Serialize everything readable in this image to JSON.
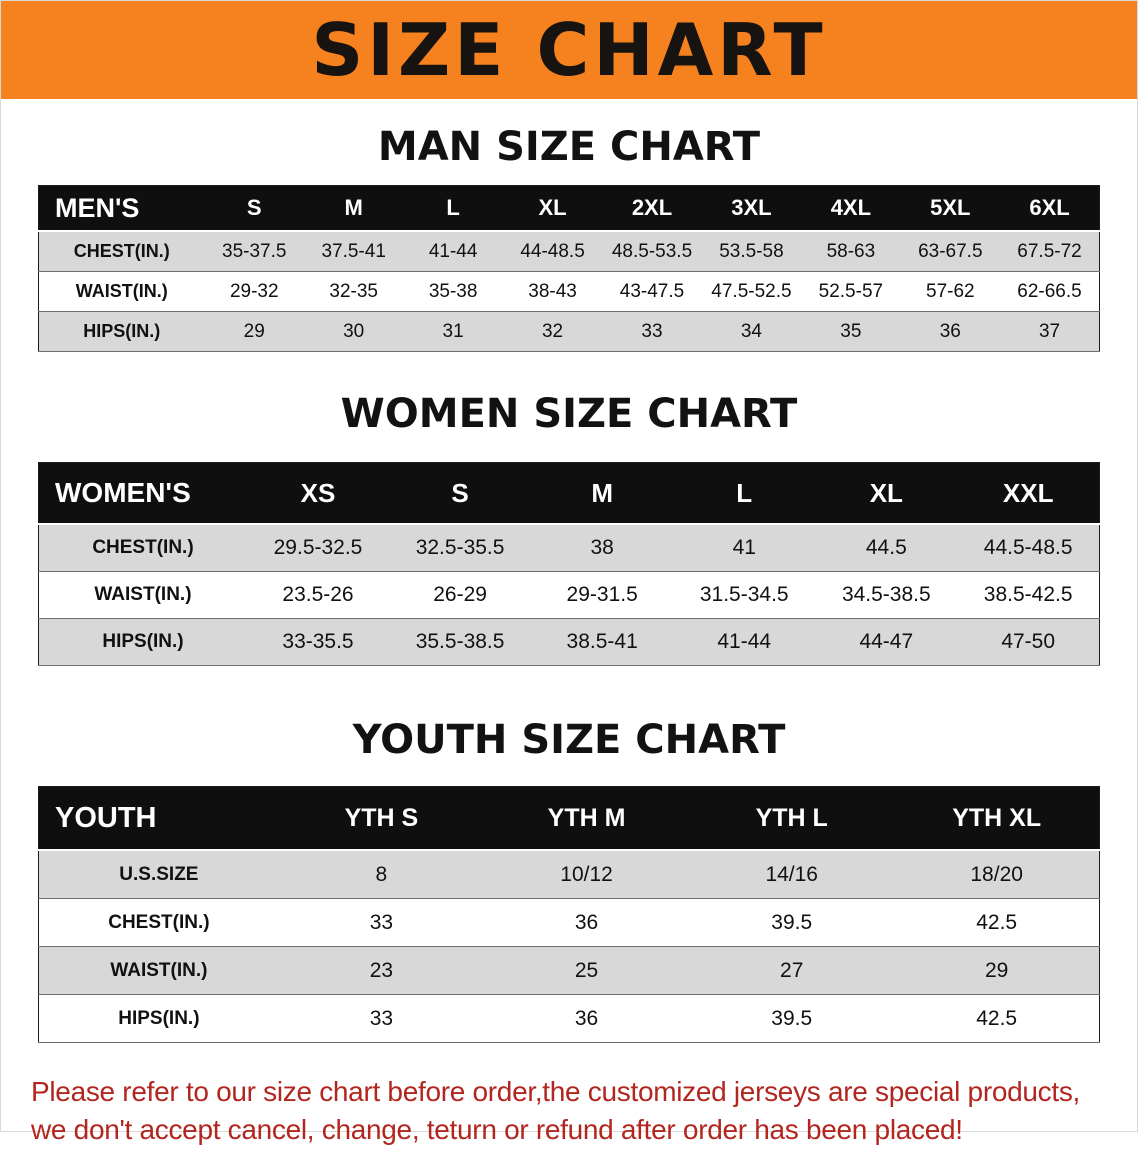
{
  "banner": {
    "title": "SIZE CHART"
  },
  "colors": {
    "banner_bg": "#F5821F",
    "header_row_bg": "#0F0F0F",
    "stripe": "#D8D8D8",
    "footer_text": "#B2261F"
  },
  "tables": [
    {
      "id": "men",
      "title": "MAN SIZE CHART",
      "header": [
        "MEN'S",
        "S",
        "M",
        "L",
        "XL",
        "2XL",
        "3XL",
        "4XL",
        "5XL",
        "6XL"
      ],
      "rows": [
        [
          "CHEST(IN.)",
          "35-37.5",
          "37.5-41",
          "41-44",
          "44-48.5",
          "48.5-53.5",
          "53.5-58",
          "58-63",
          "63-67.5",
          "67.5-72"
        ],
        [
          "WAIST(IN.)",
          "29-32",
          "32-35",
          "35-38",
          "38-43",
          "43-47.5",
          "47.5-52.5",
          "52.5-57",
          "57-62",
          "62-66.5"
        ],
        [
          "HIPS(IN.)",
          "29",
          "30",
          "31",
          "32",
          "33",
          "34",
          "35",
          "36",
          "37"
        ]
      ]
    },
    {
      "id": "women",
      "title": "WOMEN SIZE CHART",
      "header": [
        "WOMEN'S",
        "XS",
        "S",
        "M",
        "L",
        "XL",
        "XXL"
      ],
      "rows": [
        [
          "CHEST(IN.)",
          "29.5-32.5",
          "32.5-35.5",
          "38",
          "41",
          "44.5",
          "44.5-48.5"
        ],
        [
          "WAIST(IN.)",
          "23.5-26",
          "26-29",
          "29-31.5",
          "31.5-34.5",
          "34.5-38.5",
          "38.5-42.5"
        ],
        [
          "HIPS(IN.)",
          "33-35.5",
          "35.5-38.5",
          "38.5-41",
          "41-44",
          "44-47",
          "47-50"
        ]
      ]
    },
    {
      "id": "youth",
      "title": "YOUTH SIZE CHART",
      "header": [
        "YOUTH",
        "YTH S",
        "YTH M",
        "YTH L",
        "YTH XL"
      ],
      "rows": [
        [
          "U.S.SIZE",
          "8",
          "10/12",
          "14/16",
          "18/20"
        ],
        [
          "CHEST(IN.)",
          "33",
          "36",
          "39.5",
          "42.5"
        ],
        [
          "WAIST(IN.)",
          "23",
          "25",
          "27",
          "29"
        ],
        [
          "HIPS(IN.)",
          "33",
          "36",
          "39.5",
          "42.5"
        ]
      ]
    }
  ],
  "footer": {
    "line1": "Please refer to our size chart before order,the customized jerseys are special products,",
    "line2": "we don't accept cancel, change, teturn or refund after order has been placed!"
  }
}
